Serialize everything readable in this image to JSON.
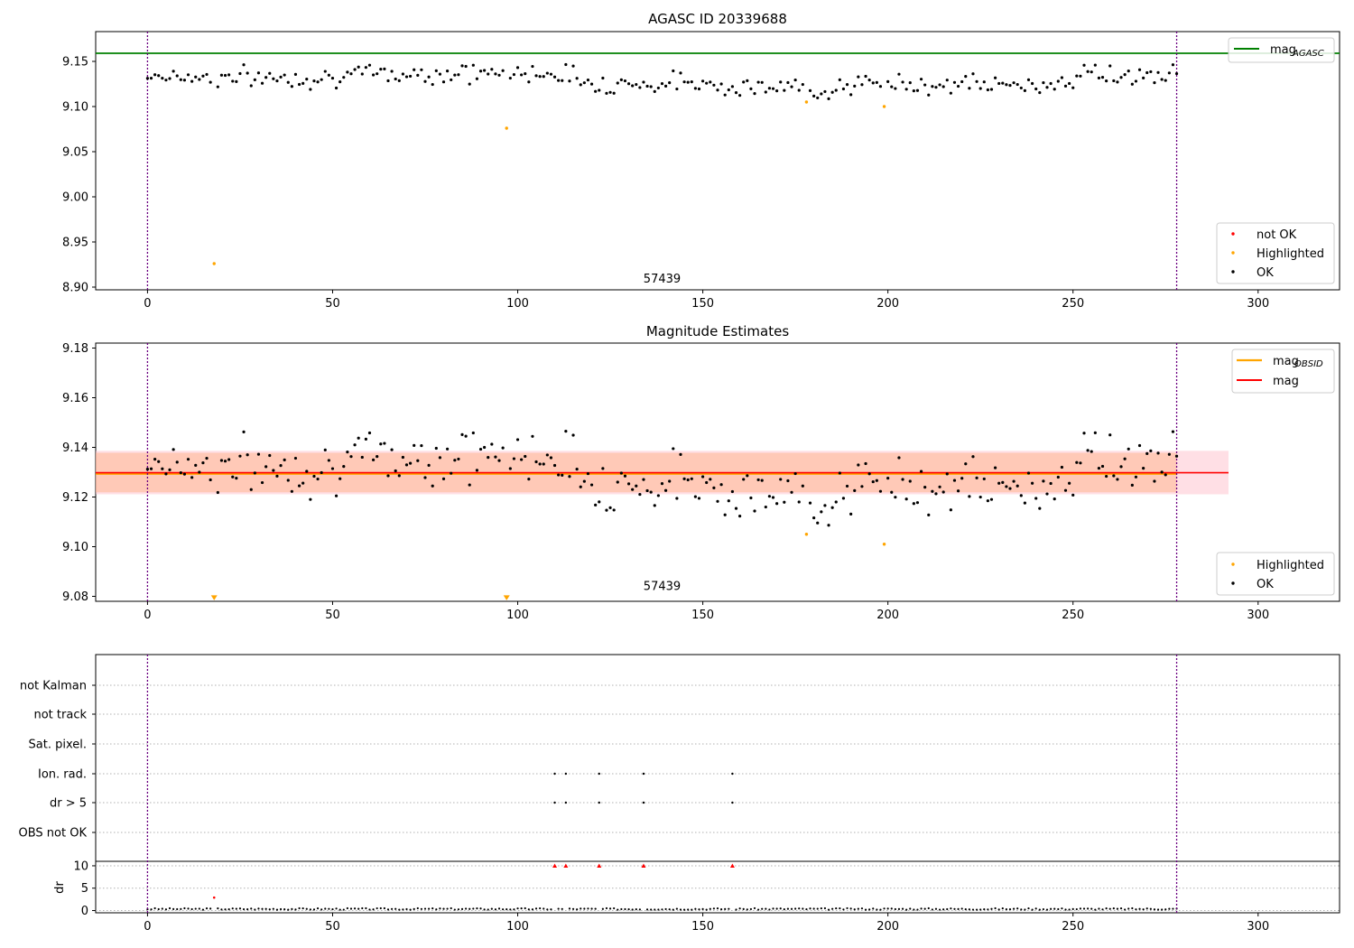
{
  "chart_data": [
    {
      "type": "scatter",
      "title": "AGASC ID 20339688",
      "xlim": [
        -14,
        322
      ],
      "ylim": [
        8.897,
        9.183
      ],
      "x_ticks": [
        0,
        50,
        100,
        150,
        200,
        250,
        300
      ],
      "y_ticks": [
        8.9,
        8.95,
        9.0,
        9.05,
        9.1,
        9.15
      ],
      "reference_lines": {
        "mag_agasc": 9.159,
        "obs_start_x": 0,
        "obs_end_x": 278
      },
      "text_annotation": {
        "x": 139,
        "y": 8.905,
        "text": "57439"
      },
      "legends": [
        {
          "position": "top-right",
          "entries": [
            {
              "label_main": "mag",
              "label_sub": "AGASC",
              "marker": "line",
              "color": "#008000"
            }
          ]
        },
        {
          "position": "bottom-right",
          "entries": [
            {
              "label": "not OK",
              "marker": "dot",
              "color": "#ff0000"
            },
            {
              "label": "Highlighted",
              "marker": "dot",
              "color": "#ffa500"
            },
            {
              "label": "OK",
              "marker": "dot",
              "color": "#000000"
            }
          ]
        }
      ],
      "series": [
        {
          "name": "Highlighted",
          "color": "#ffa500",
          "x": [
            18,
            97,
            178,
            199
          ],
          "y": [
            8.926,
            9.076,
            9.105,
            9.1
          ]
        },
        {
          "name": "OK",
          "color": "#000000",
          "generated": true,
          "keypoints_x": [
            0,
            20,
            40,
            60,
            80,
            90,
            100,
            110,
            120,
            135,
            150,
            165,
            180,
            200,
            220,
            240,
            255,
            265,
            278
          ],
          "keypoints_y": [
            9.135,
            9.132,
            9.132,
            9.135,
            9.137,
            9.137,
            9.136,
            9.139,
            9.126,
            9.125,
            9.127,
            9.12,
            9.12,
            9.125,
            9.125,
            9.122,
            9.137,
            9.133,
            9.133
          ],
          "amplitude": 0.0085
        }
      ]
    },
    {
      "type": "scatter",
      "title": "Magnitude Estimates",
      "xlim": [
        -14,
        322
      ],
      "ylim": [
        9.078,
        9.182
      ],
      "x_ticks": [
        0,
        50,
        100,
        150,
        200,
        250,
        300
      ],
      "y_ticks": [
        9.08,
        9.1,
        9.12,
        9.14,
        9.16,
        9.18
      ],
      "reference_lines": {
        "mag": 9.1298,
        "mag_obsid": 9.1293,
        "band_low": 9.1211,
        "band_high": 9.1386,
        "inner_band_low": 9.1219,
        "inner_band_high": 9.1378,
        "band_end_x": 292,
        "obs_start_x": 0,
        "obs_end_x": 278
      },
      "text_annotation": {
        "x": 139,
        "y": 9.0825,
        "text": "57439"
      },
      "legends": [
        {
          "position": "top-right",
          "entries": [
            {
              "label_main": "mag",
              "label_sub": "OBSID",
              "marker": "line",
              "color": "#ffa500"
            },
            {
              "label": "mag",
              "marker": "line",
              "color": "#ff0000"
            }
          ]
        },
        {
          "position": "bottom-right",
          "entries": [
            {
              "label": "Highlighted",
              "marker": "dot",
              "color": "#ffa500"
            },
            {
              "label": "OK",
              "marker": "dot",
              "color": "#000000"
            }
          ]
        }
      ],
      "series": [
        {
          "name": "Highlighted",
          "color": "#ffa500",
          "x": [
            178,
            199
          ],
          "y": [
            9.105,
            9.101
          ]
        },
        {
          "name": "Highlighted (off scale)",
          "color": "#ffa500",
          "marker": "triangle-down",
          "x": [
            18,
            97
          ],
          "y": [
            9.0795,
            9.0795
          ]
        },
        {
          "name": "OK",
          "color": "#000000",
          "generated": true,
          "copy_of_panel": 0
        }
      ]
    },
    {
      "type": "scatter",
      "title": "",
      "xlim": [
        -14,
        322
      ],
      "x_ticks": [
        0,
        50,
        100,
        150,
        200,
        250,
        300
      ],
      "categories": [
        "not Kalman",
        "not track",
        "Sat. pixel.",
        "Ion. rad.",
        "dr > 5",
        "OBS not OK"
      ],
      "flags": {
        "Ion. rad.": [
          110,
          113,
          122,
          134,
          158
        ],
        "dr > 5": [
          110,
          113,
          122,
          134,
          158
        ]
      },
      "dr_panel": {
        "ylabel": "dr",
        "ylim": [
          -0.5,
          11
        ],
        "y_ticks": [
          0,
          5,
          10
        ],
        "red_triangles": {
          "x": [
            110,
            113,
            122,
            134,
            158
          ],
          "y": [
            10,
            10,
            10,
            10,
            10
          ]
        },
        "red_dot": {
          "x": 18,
          "y": 2.9
        },
        "baseline": {
          "x_start": 0,
          "x_end": 278,
          "typical_y": 0.35
        }
      },
      "obs_start_x": 0,
      "obs_end_x": 278
    }
  ]
}
